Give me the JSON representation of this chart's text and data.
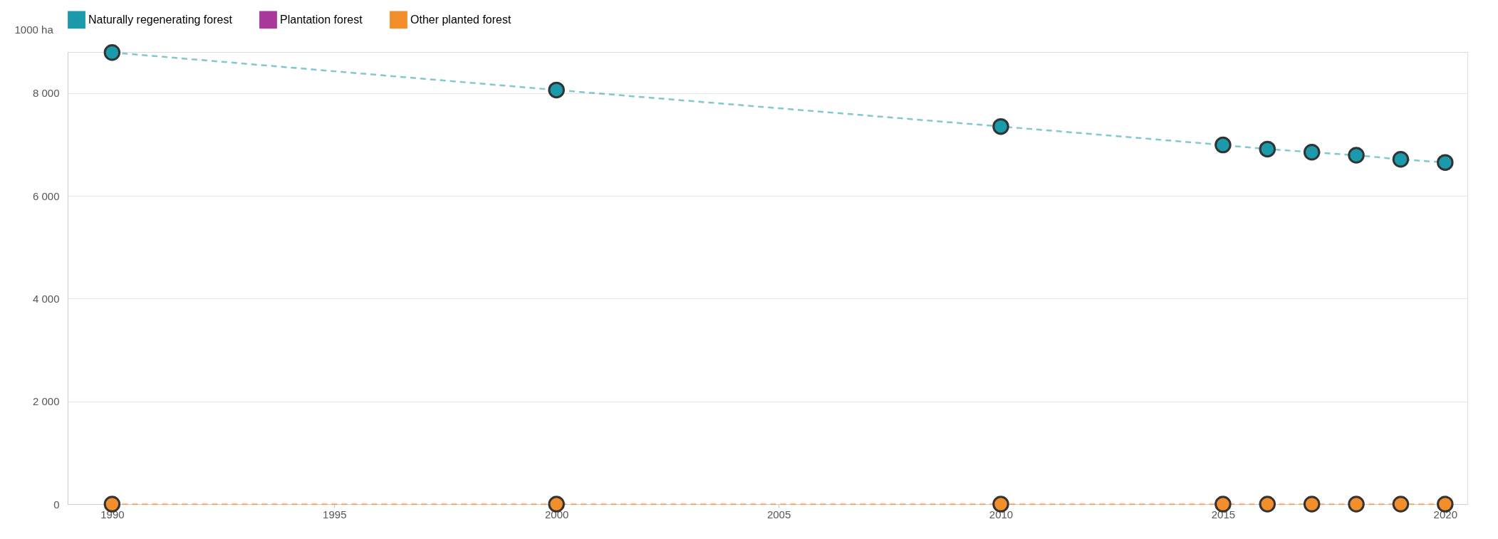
{
  "chart_data": {
    "type": "line",
    "ylabel": "1000 ha",
    "x": [
      1990,
      2000,
      2010,
      2015,
      2016,
      2017,
      2018,
      2019,
      2020
    ],
    "series": [
      {
        "name": "Naturally regenerating forest",
        "color": "#1a9aaa",
        "values": [
          8790,
          8060,
          7350,
          6990,
          6910,
          6850,
          6790,
          6710,
          6650
        ]
      },
      {
        "name": "Plantation forest",
        "color": "#a8399a",
        "values": [
          null,
          null,
          null,
          null,
          null,
          null,
          null,
          null,
          null
        ]
      },
      {
        "name": "Other planted forest",
        "color": "#f28e2b",
        "values": [
          0,
          0,
          0,
          0,
          0,
          0,
          0,
          0,
          0
        ]
      }
    ],
    "xlim": [
      1989,
      2020.5
    ],
    "xticks": [
      1990,
      1995,
      2000,
      2005,
      2010,
      2015,
      2020
    ],
    "ylim": [
      0,
      8800
    ],
    "yticks": [
      {
        "value": 0,
        "label": "0"
      },
      {
        "value": 2000,
        "label": "2 000"
      },
      {
        "value": 4000,
        "label": "4 000"
      },
      {
        "value": 6000,
        "label": "6 000"
      },
      {
        "value": 8000,
        "label": "8 000"
      }
    ],
    "grid": "y",
    "legend": "top left",
    "marker": "circle",
    "line_style": "dashed"
  }
}
